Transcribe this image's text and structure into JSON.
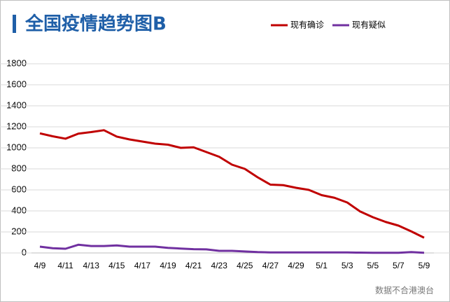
{
  "chart_data": {
    "type": "line",
    "title": "全国疫情趋势图B",
    "note": "数据不合港澳台",
    "categories": [
      "4/9",
      null,
      "4/11",
      null,
      "4/13",
      null,
      "4/15",
      null,
      "4/17",
      null,
      "4/19",
      null,
      "4/21",
      null,
      "4/23",
      null,
      "4/25",
      null,
      "4/27",
      null,
      "4/29",
      null,
      "5/1",
      null,
      "5/3",
      null,
      "5/5",
      null,
      "5/7",
      null,
      "5/9"
    ],
    "series": [
      {
        "name": "现有确诊",
        "color": "#c00000",
        "values": [
          1138,
          1110,
          1087,
          1135,
          1150,
          1168,
          1107,
          1080,
          1060,
          1040,
          1030,
          1000,
          1005,
          960,
          915,
          840,
          800,
          720,
          650,
          645,
          620,
          600,
          550,
          525,
          480,
          395,
          340,
          295,
          260,
          205,
          145
        ]
      },
      {
        "name": "现有疑似",
        "color": "#7030a0",
        "values": [
          60,
          45,
          40,
          78,
          66,
          66,
          72,
          60,
          60,
          60,
          48,
          42,
          36,
          34,
          20,
          20,
          14,
          8,
          5,
          5,
          5,
          5,
          5,
          5,
          5,
          3,
          2,
          2,
          2,
          8,
          2
        ]
      }
    ],
    "ylim": [
      0,
      1800
    ],
    "yticks": [
      0,
      200,
      400,
      600,
      800,
      1000,
      1200,
      1400,
      1600,
      1800
    ],
    "grid": true,
    "legend": "top-right"
  }
}
